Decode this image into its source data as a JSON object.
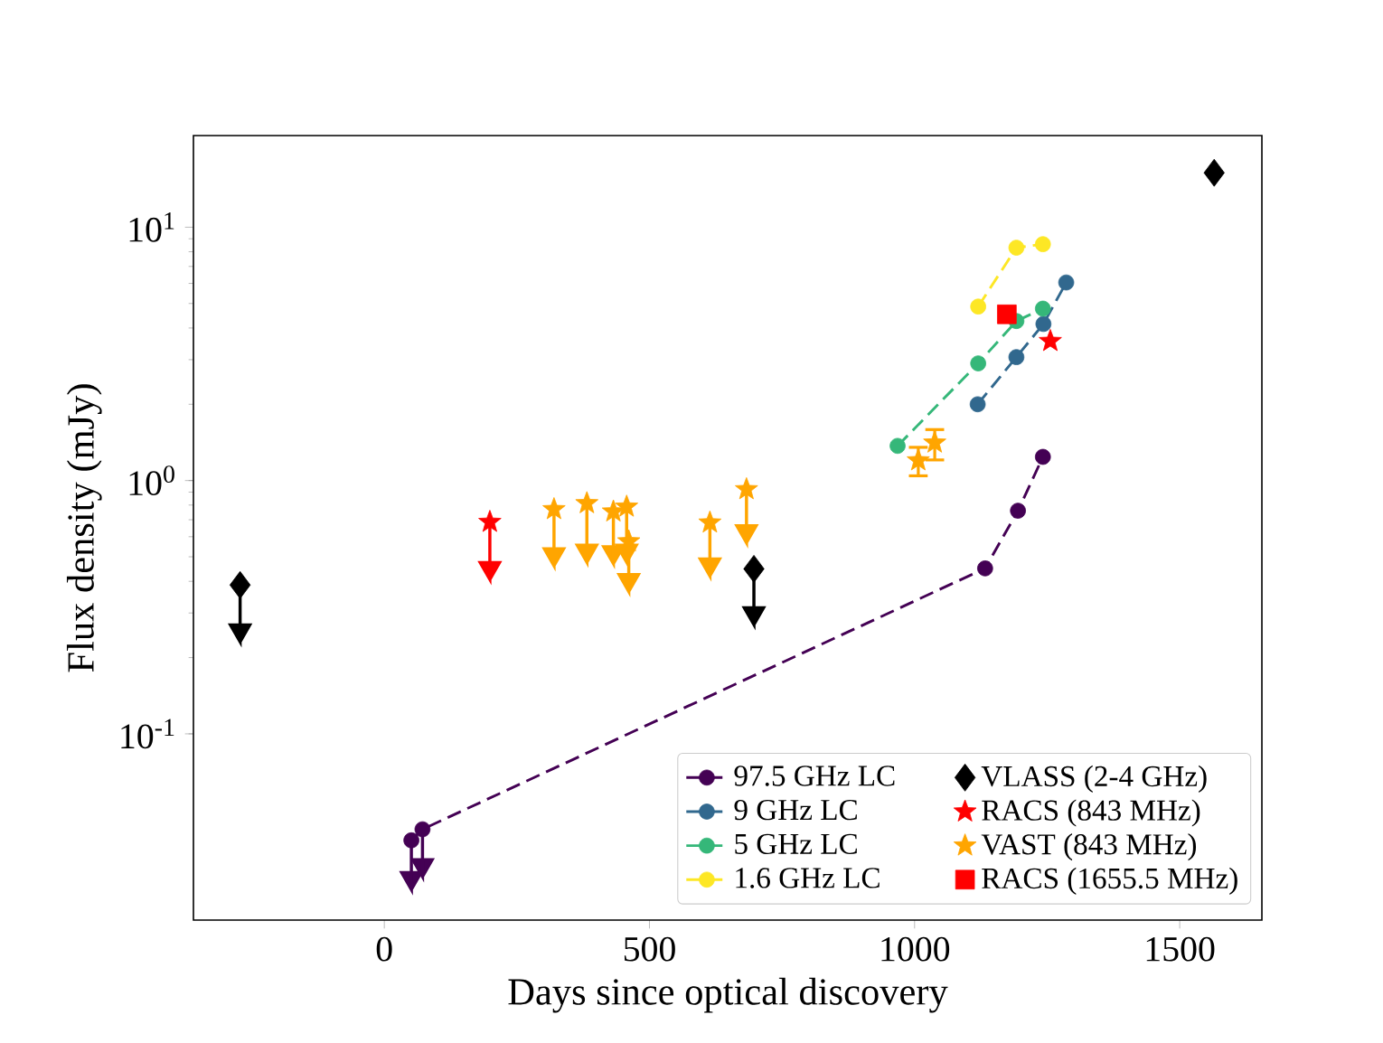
{
  "chart_data": {
    "type": "scatter",
    "xlabel": "Days since optical discovery",
    "ylabel": "Flux density (mJy)",
    "log": "y",
    "xlim": [
      -360,
      1655
    ],
    "ylim": [
      0.0184,
      23
    ],
    "xticks": [
      0,
      500,
      1000,
      1500
    ],
    "yticks": [
      {
        "value": 0.1,
        "label": "10$^{-1}$"
      },
      {
        "value": 1,
        "label": "10$^{0}$"
      },
      {
        "value": 10,
        "label": "10$^{1}$"
      }
    ],
    "legend": "bottom right",
    "grid": false,
    "series": [
      {
        "name": "97.5 GHz LC",
        "type": "line",
        "line_style": "dashed",
        "marker": "circle",
        "color": "#440154",
        "x": [
          51,
          72,
          1133,
          1195,
          1242
        ],
        "values": [
          0.038,
          0.042,
          0.45,
          0.76,
          1.24
        ],
        "errors": [
          [
            0.0243,
            0.038
          ],
          [
            0.0273,
            0.042
          ],
          null,
          null,
          null
        ]
      },
      {
        "name": "9 GHz LC",
        "type": "line",
        "line_style": "dashed",
        "marker": "circle",
        "color": "#31688e",
        "x": [
          1119,
          1192,
          1243,
          1286
        ],
        "values": [
          2.0,
          3.07,
          4.15,
          6.05
        ]
      },
      {
        "name": "5 GHz LC",
        "type": "line",
        "line_style": "dashed",
        "marker": "circle",
        "color": "#35b779",
        "x": [
          968,
          1120,
          1192,
          1242
        ],
        "values": [
          1.37,
          2.9,
          4.26,
          4.77
        ]
      },
      {
        "name": "1.6 GHz LC",
        "type": "line",
        "line_style": "dashed",
        "marker": "circle",
        "color": "#fde725",
        "x": [
          1120,
          1192,
          1242
        ],
        "values": [
          4.86,
          8.3,
          8.57
        ]
      },
      {
        "name": "VLASS (2-4 GHz)",
        "marker": "diamond",
        "color": "#000000",
        "x": [
          -272,
          697,
          1565
        ],
        "values": [
          0.387,
          0.448,
          16.4
        ],
        "errors": [
          [
            0.231,
            0.387
          ],
          [
            0.27,
            0.448
          ],
          null
        ]
      },
      {
        "name": "RACS (843 MHz)",
        "marker": "star",
        "color": "#ff0000",
        "x": [
          199,
          1256
        ],
        "values": [
          0.686,
          3.55
        ],
        "errors": [
          [
            0.407,
            0.686
          ],
          null
        ]
      },
      {
        "name": "VAST (843 MHz)",
        "marker": "star",
        "color": "#ffa500",
        "x": [
          320,
          382,
          432,
          457,
          461,
          614,
          683,
          1007,
          1038
        ],
        "values": [
          0.77,
          0.813,
          0.754,
          0.788,
          0.575,
          0.682,
          0.923,
          1.2,
          1.41
        ],
        "errors": [
          [
            0.461,
            0.77
          ],
          [
            0.476,
            0.813
          ],
          [
            0.47,
            0.754
          ],
          [
            0.476,
            0.788
          ],
          [
            0.365,
            0.575
          ],
          [
            0.42,
            0.682
          ],
          [
            0.568,
            0.923
          ],
          [
            1.03,
            1.37
          ],
          [
            1.19,
            1.61
          ]
        ]
      },
      {
        "name": "RACS (1655.5 MHz)",
        "marker": "square",
        "color": "#ff0000",
        "x": [
          1174
        ],
        "values": [
          4.53
        ]
      }
    ]
  }
}
